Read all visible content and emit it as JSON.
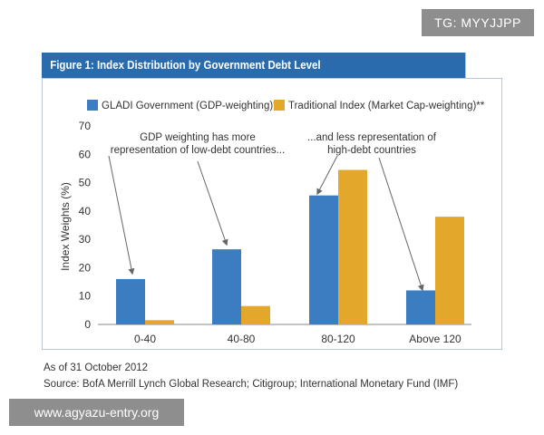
{
  "tag_label": "TG: MYYJJPP",
  "figure_title": "Figure 1: Index Distribution by Government Debt Level",
  "footnote_date": "As of 31 October 2012",
  "footnote_source": "Source: BofA Merrill Lynch Global Research; Citigroup; International Monetary Fund (IMF)",
  "watermark": "www.agyazu-entry.org",
  "chart_data": {
    "type": "bar",
    "title": "Index Distribution by Government Debt Level",
    "xlabel": "",
    "ylabel": "Index Weights (%)",
    "ylim": [
      0,
      70
    ],
    "yticks": [
      0,
      10,
      20,
      30,
      40,
      50,
      60,
      70
    ],
    "grid": false,
    "legend_position": "top",
    "categories": [
      "0-40",
      "40-80",
      "80-120",
      "Above 120"
    ],
    "series": [
      {
        "name": "GLADI Government (GDP-weighting)*",
        "color": "#3c7cc0",
        "values": [
          16,
          26.5,
          45.5,
          12
        ]
      },
      {
        "name": "Traditional Index (Market Cap-weighting)**",
        "color": "#e3a82b",
        "values": [
          1.5,
          6.5,
          54.5,
          38
        ]
      }
    ],
    "annotations": [
      {
        "lines": [
          "GDP weighting has more",
          "representation of low-debt countries..."
        ]
      },
      {
        "lines": [
          "...and less representation of",
          "high-debt countries"
        ]
      }
    ]
  }
}
